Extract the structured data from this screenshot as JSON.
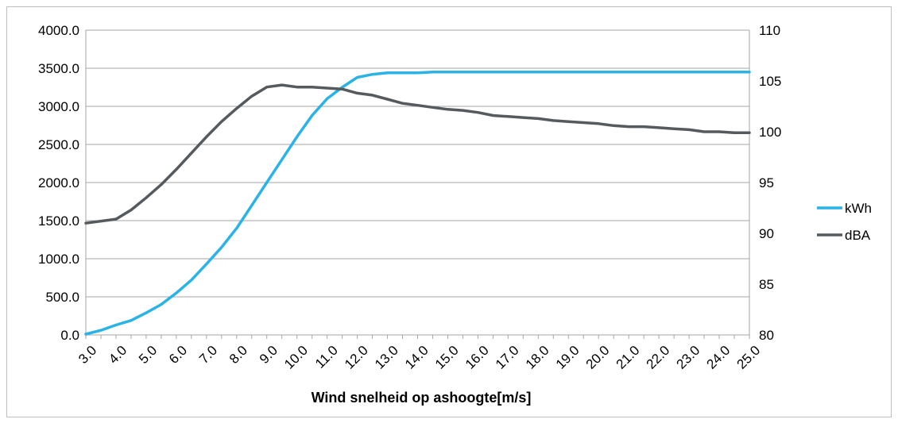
{
  "chart_data": {
    "type": "line",
    "title": "",
    "xlabel": "Wind snelheid op ashoogte[m/s]",
    "ylabel": "",
    "y2label": "",
    "ylim": [
      0,
      4000
    ],
    "y2lim": [
      80,
      110
    ],
    "yticks": [
      "0.0",
      "500.0",
      "1000.0",
      "1500.0",
      "2000.0",
      "2500.0",
      "3000.0",
      "3500.0",
      "4000.0"
    ],
    "y2ticks": [
      "80",
      "85",
      "90",
      "95",
      "100",
      "105",
      "110"
    ],
    "x": [
      3.0,
      3.5,
      4.0,
      4.5,
      5.0,
      5.5,
      6.0,
      6.5,
      7.0,
      7.5,
      8.0,
      8.5,
      9.0,
      9.5,
      10.0,
      10.5,
      11.0,
      11.5,
      12.0,
      12.5,
      13.0,
      13.5,
      14.0,
      14.5,
      15.0,
      15.5,
      16.0,
      16.5,
      17.0,
      17.5,
      18.0,
      18.5,
      19.0,
      19.5,
      20.0,
      20.5,
      21.0,
      21.5,
      22.0,
      22.5,
      23.0,
      23.5,
      24.0,
      24.5,
      25.0
    ],
    "xtick_labels": [
      "3.0",
      "4.0",
      "5.0",
      "6.0",
      "7.0",
      "8.0",
      "9.0",
      "10.0",
      "11.0",
      "12.0",
      "13.0",
      "14.0",
      "15.0",
      "16.0",
      "17.0",
      "18.0",
      "19.0",
      "20.0",
      "21.0",
      "22.0",
      "23.0",
      "24.0",
      "25.0"
    ],
    "grid": true,
    "legend_position": "right",
    "series": [
      {
        "name": "kWh",
        "axis": "left",
        "color": "#29b3e6",
        "values": [
          10,
          60,
          130,
          190,
          290,
          400,
          550,
          720,
          930,
          1150,
          1400,
          1700,
          2000,
          2300,
          2600,
          2880,
          3100,
          3250,
          3380,
          3420,
          3440,
          3440,
          3440,
          3450,
          3450,
          3450,
          3450,
          3450,
          3450,
          3450,
          3450,
          3450,
          3450,
          3450,
          3450,
          3450,
          3450,
          3450,
          3450,
          3450,
          3450,
          3450,
          3450,
          3450,
          3450
        ]
      },
      {
        "name": "dBA",
        "axis": "right",
        "color": "#555a5e",
        "values": [
          91.0,
          91.2,
          91.4,
          92.3,
          93.5,
          94.8,
          96.3,
          97.9,
          99.5,
          101.0,
          102.3,
          103.5,
          104.4,
          104.6,
          104.4,
          104.4,
          104.3,
          104.2,
          103.8,
          103.6,
          103.2,
          102.8,
          102.6,
          102.4,
          102.2,
          102.1,
          101.9,
          101.6,
          101.5,
          101.4,
          101.3,
          101.1,
          101.0,
          100.9,
          100.8,
          100.6,
          100.5,
          100.5,
          100.4,
          100.3,
          100.2,
          100.0,
          100.0,
          99.9,
          99.9
        ]
      }
    ]
  }
}
